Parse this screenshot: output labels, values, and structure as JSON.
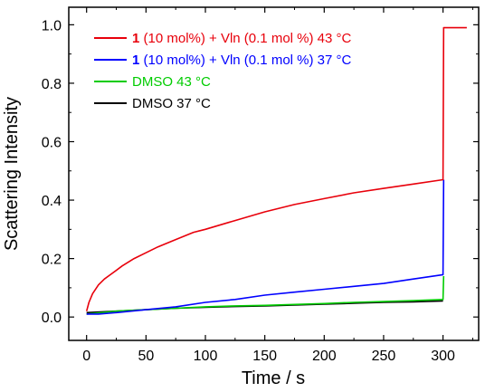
{
  "chart_data": {
    "type": "line",
    "xlabel": "Time / s",
    "ylabel": "Scattering Intensity",
    "xlim": [
      -15,
      330
    ],
    "ylim": [
      -0.08,
      1.06
    ],
    "x_ticks": [
      0,
      50,
      100,
      150,
      200,
      250,
      300
    ],
    "x_tick_labels": [
      "0",
      "50",
      "100",
      "150",
      "200",
      "250",
      "300"
    ],
    "y_ticks": [
      0.0,
      0.2,
      0.4,
      0.6,
      0.8,
      1.0
    ],
    "y_tick_labels": [
      "0.0",
      "0.2",
      "0.4",
      "0.6",
      "0.8",
      "1.0"
    ],
    "grid": false,
    "legend_position": "top-left",
    "series": [
      {
        "name": "1 (10 mol%) + Vln (0.1 mol %) 43 °C",
        "name_bold": "1",
        "name_rest": " (10 mol%) + Vln (0.1 mol %) 43 °C",
        "color": "#e8000b",
        "x": [
          0,
          2,
          5,
          10,
          15,
          20,
          30,
          40,
          50,
          60,
          75,
          90,
          100,
          125,
          150,
          175,
          200,
          225,
          250,
          275,
          300,
          300.5,
          310,
          320
        ],
        "y": [
          0.02,
          0.05,
          0.08,
          0.11,
          0.13,
          0.145,
          0.175,
          0.2,
          0.22,
          0.24,
          0.265,
          0.29,
          0.3,
          0.33,
          0.36,
          0.385,
          0.405,
          0.425,
          0.44,
          0.455,
          0.47,
          0.99,
          0.99,
          0.99
        ]
      },
      {
        "name": "1 (10 mol%) + Vln (0.1 mol %) 37 °C",
        "name_bold": "1",
        "name_rest": " (10 mol%) + Vln (0.1 mol %) 37 °C",
        "color": "#0000ff",
        "x": [
          0,
          10,
          25,
          50,
          75,
          100,
          125,
          150,
          175,
          200,
          225,
          250,
          275,
          300,
          300.5
        ],
        "y": [
          0.01,
          0.01,
          0.015,
          0.025,
          0.035,
          0.05,
          0.06,
          0.075,
          0.085,
          0.095,
          0.105,
          0.115,
          0.13,
          0.145,
          0.47
        ]
      },
      {
        "name": "DMSO 43 °C",
        "name_bold": "",
        "name_rest": "DMSO 43 °C",
        "color": "#00cc00",
        "x": [
          0,
          25,
          50,
          75,
          100,
          125,
          150,
          175,
          200,
          225,
          250,
          275,
          300,
          300.5
        ],
        "y": [
          0.01,
          0.02,
          0.025,
          0.03,
          0.035,
          0.038,
          0.04,
          0.043,
          0.046,
          0.05,
          0.053,
          0.056,
          0.06,
          0.14
        ]
      },
      {
        "name": "DMSO 37 °C",
        "name_bold": "",
        "name_rest": "DMSO 37 °C",
        "color": "#000000",
        "x": [
          0,
          25,
          50,
          75,
          100,
          125,
          150,
          175,
          200,
          225,
          250,
          275,
          300
        ],
        "y": [
          0.015,
          0.02,
          0.025,
          0.03,
          0.033,
          0.036,
          0.038,
          0.041,
          0.044,
          0.047,
          0.05,
          0.052,
          0.055
        ]
      }
    ]
  }
}
